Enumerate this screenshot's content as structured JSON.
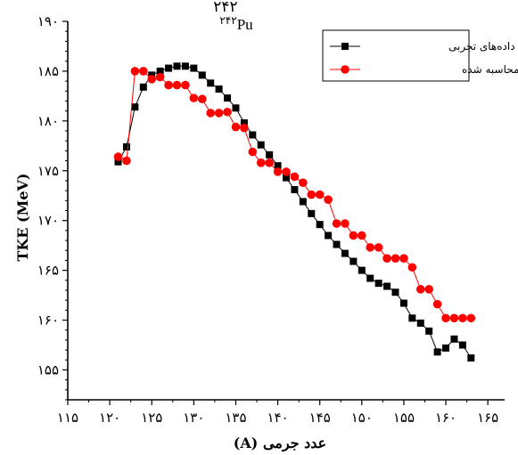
{
  "chart_data": {
    "type": "scatter",
    "title": "۲۴۲Pu",
    "title_superscript": "۲۴۲",
    "title_element": "Pu",
    "xlabel": "عدد جرمی (A)",
    "ylabel": "TKE (MeV)",
    "xlim": [
      115,
      167
    ],
    "ylim": [
      152,
      190
    ],
    "x_ticks": [
      115,
      120,
      125,
      130,
      135,
      140,
      145,
      150,
      155,
      160,
      165
    ],
    "x_tick_labels": [
      "۱۱۵",
      "۱۲۰",
      "۱۲۵",
      "۱۳۰",
      "۱۳۵",
      "۱۴۰",
      "۱۴۵",
      "۱۵۰",
      "۱۵۵",
      "۱۶۰",
      "۱۶۵"
    ],
    "y_ticks": [
      155,
      160,
      165,
      170,
      175,
      180,
      185,
      190
    ],
    "y_tick_labels": [
      "۱۵۵",
      "۱۶۰",
      "۱۶۵",
      "۱۷۰",
      "۱۷۵",
      "۱۸۰",
      "۱۸۵",
      "۱۹۰"
    ],
    "legend_position": "top-right",
    "series": [
      {
        "name": "داده‌های تجربی",
        "color": "#000000",
        "marker": "square",
        "x": [
          121,
          122,
          123,
          124,
          125,
          126,
          127,
          128,
          129,
          130,
          131,
          132,
          133,
          134,
          135,
          136,
          137,
          138,
          139,
          140,
          141,
          142,
          143,
          144,
          145,
          146,
          147,
          148,
          149,
          150,
          151,
          152,
          153,
          154,
          155,
          156,
          157,
          158,
          159,
          160,
          161,
          162,
          163
        ],
        "y": [
          175.9,
          177.4,
          181.4,
          183.4,
          184.6,
          185.0,
          185.3,
          185.5,
          185.5,
          185.3,
          184.6,
          183.8,
          183.2,
          182.3,
          181.3,
          179.8,
          178.6,
          177.6,
          176.6,
          175.5,
          174.3,
          173.1,
          171.9,
          170.7,
          169.6,
          168.5,
          167.6,
          166.7,
          165.9,
          165.0,
          164.2,
          163.7,
          163.4,
          162.8,
          161.7,
          160.2,
          159.7,
          158.9,
          156.8,
          157.2,
          158.1,
          157.5,
          156.2
        ]
      },
      {
        "name": "نتایج محاسبه شده",
        "color": "#ff0000",
        "marker": "circle",
        "x": [
          121,
          122,
          123,
          124,
          125,
          126,
          127,
          128,
          129,
          130,
          131,
          132,
          133,
          134,
          135,
          136,
          137,
          138,
          139,
          140,
          141,
          142,
          143,
          144,
          145,
          146,
          147,
          148,
          149,
          150,
          151,
          152,
          153,
          154,
          155,
          156,
          157,
          158,
          159,
          160,
          161,
          162,
          163
        ],
        "y": [
          176.4,
          176.0,
          185.0,
          185.0,
          184.2,
          184.4,
          183.6,
          183.6,
          183.6,
          182.3,
          182.2,
          180.8,
          180.8,
          180.9,
          179.4,
          179.3,
          176.9,
          175.8,
          175.8,
          174.9,
          174.9,
          174.4,
          173.8,
          172.6,
          172.6,
          172.1,
          169.7,
          169.7,
          168.5,
          168.5,
          167.3,
          167.3,
          166.2,
          166.2,
          166.2,
          165.3,
          163.1,
          163.1,
          161.6,
          160.2,
          160.2,
          160.2,
          160.2
        ]
      }
    ]
  }
}
